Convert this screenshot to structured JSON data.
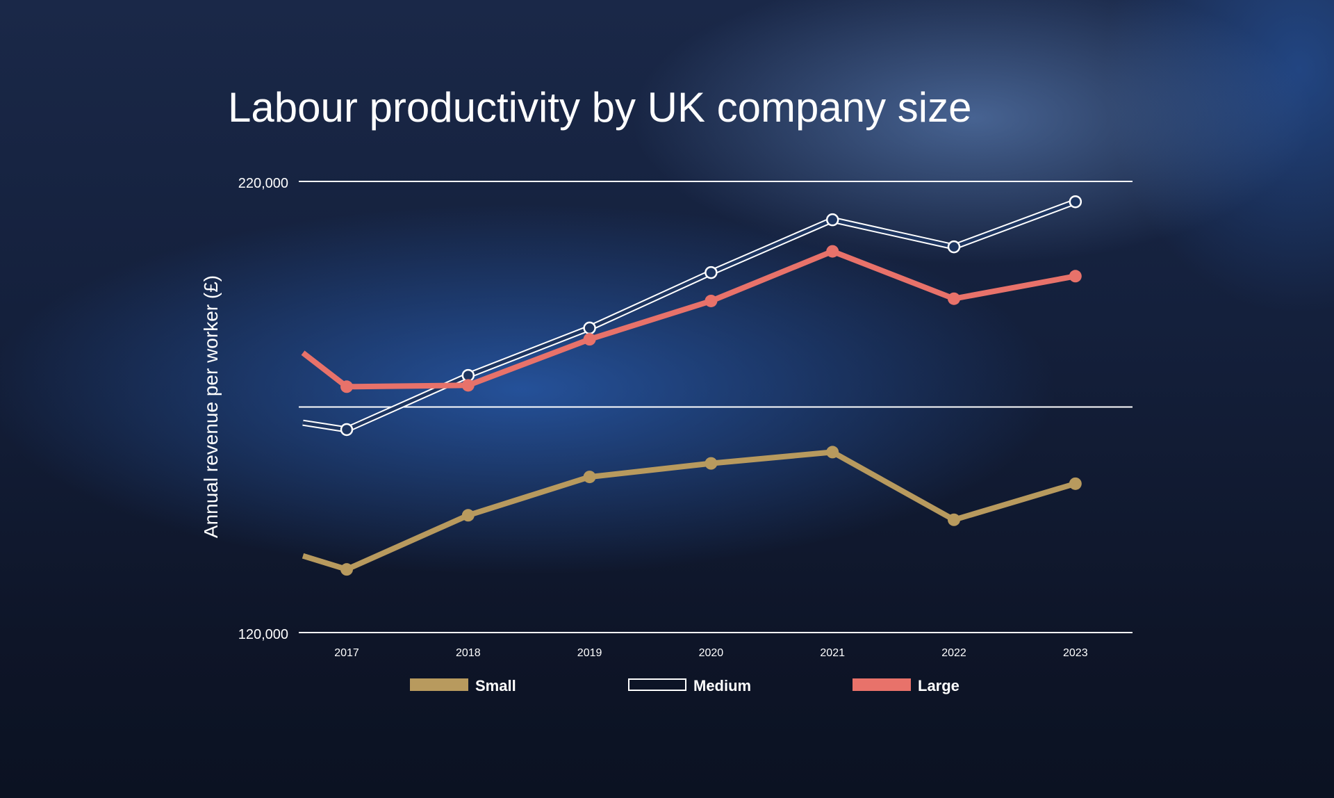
{
  "chart_data": {
    "type": "line",
    "title": "Labour productivity by UK company size",
    "xlabel": "",
    "ylabel": "Annual revenue per worker (£)",
    "ylim": [
      120000,
      220000
    ],
    "ytick_labels": [
      "220,000",
      "120,000"
    ],
    "reference_line": 170000,
    "grid": false,
    "legend_position": "bottom",
    "categories": [
      "2017",
      "2018",
      "2019",
      "2020",
      "2021",
      "2022",
      "2023"
    ],
    "series": [
      {
        "name": "Small",
        "color": "#b89a5e",
        "style": "solid",
        "lead_in": 137000,
        "values": [
          134000,
          146000,
          154500,
          157500,
          160000,
          145000,
          153000
        ]
      },
      {
        "name": "Medium",
        "color": "#ffffff",
        "style": "outline",
        "lead_in": 166500,
        "values": [
          165000,
          177000,
          187500,
          199800,
          211500,
          205500,
          215500
        ]
      },
      {
        "name": "Large",
        "color": "#e8726a",
        "style": "solid",
        "lead_in": 182000,
        "values": [
          174500,
          174800,
          185000,
          193500,
          204500,
          194000,
          199000
        ]
      }
    ]
  }
}
